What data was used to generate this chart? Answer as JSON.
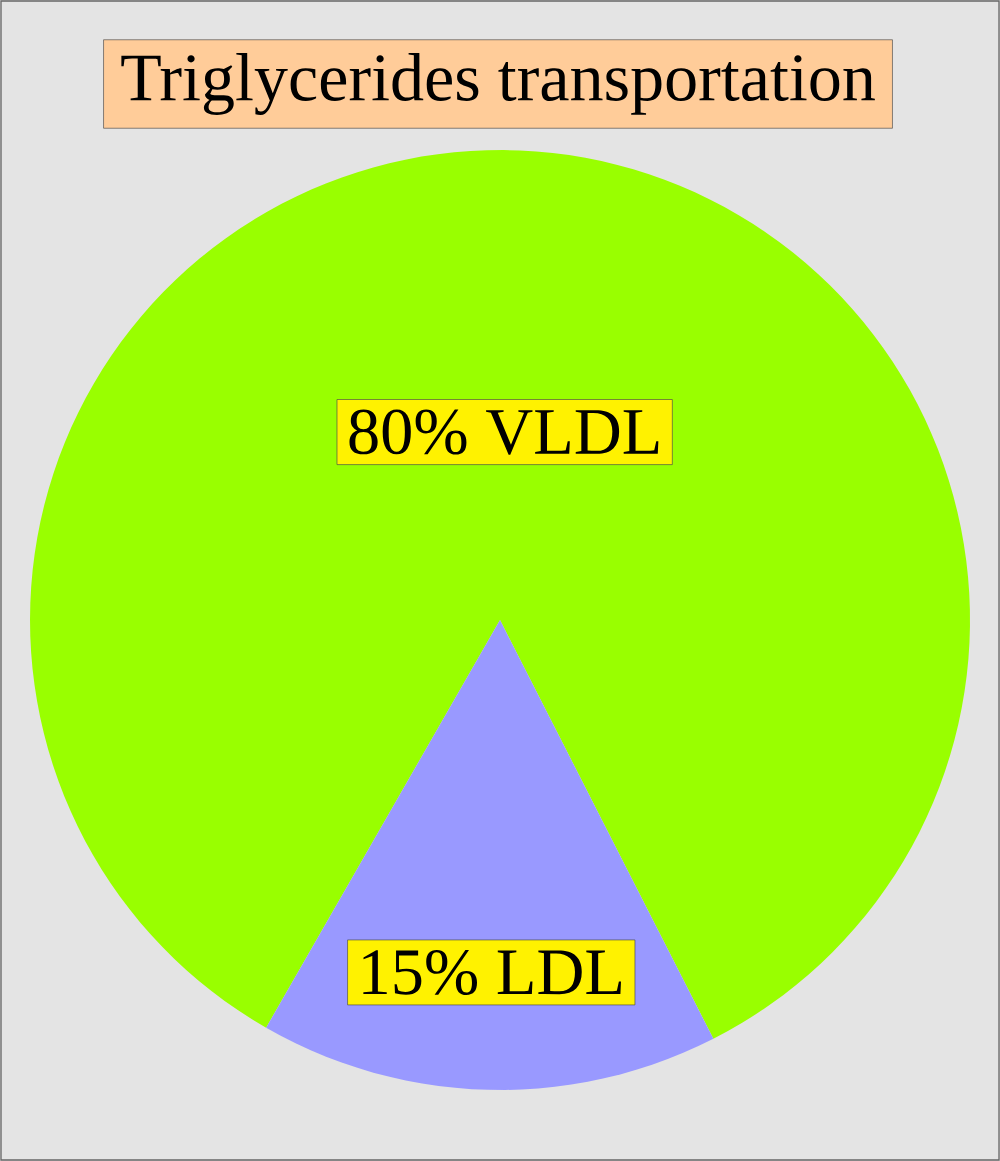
{
  "chart_data": {
    "type": "pie",
    "title": "Triglycerides transportation",
    "categories": [
      "80% VLDL",
      "15% LDL"
    ],
    "values": [
      80,
      15
    ],
    "colors": [
      "#99ff00",
      "#9999ff"
    ]
  }
}
